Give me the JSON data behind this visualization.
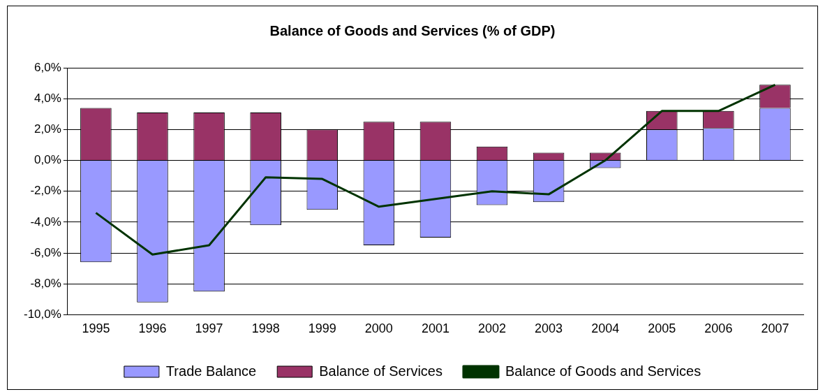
{
  "chart_data": {
    "type": "bar",
    "title": "Balance of Goods and Services (% of GDP)",
    "categories": [
      "1995",
      "1996",
      "1997",
      "1998",
      "1999",
      "2000",
      "2001",
      "2002",
      "2003",
      "2004",
      "2005",
      "2006",
      "2007"
    ],
    "stacked": true,
    "series": [
      {
        "name": "Trade Balance",
        "color": "#9999ff",
        "values": [
          -6.6,
          -9.2,
          -8.5,
          -4.2,
          -3.2,
          -5.5,
          -5.0,
          -2.9,
          -2.7,
          -0.5,
          2.0,
          2.1,
          3.4
        ]
      },
      {
        "name": "Balance of Services",
        "color": "#993366",
        "values": [
          3.4,
          3.1,
          3.1,
          3.1,
          2.0,
          2.5,
          2.5,
          0.9,
          0.5,
          0.5,
          1.2,
          1.1,
          1.5
        ]
      },
      {
        "name": "Balance of Goods and Services",
        "type": "line",
        "color": "#003300",
        "values": [
          -3.4,
          -6.1,
          -5.5,
          -1.1,
          -1.2,
          -3.0,
          -2.5,
          -2.0,
          -2.2,
          0.0,
          3.2,
          3.2,
          4.9
        ]
      }
    ],
    "ylim": [
      -10,
      6
    ],
    "yticks": [
      {
        "value": -10,
        "label": "-10,0%"
      },
      {
        "value": -8,
        "label": "-8,0%"
      },
      {
        "value": -6,
        "label": "-6,0%"
      },
      {
        "value": -4,
        "label": "-4,0%"
      },
      {
        "value": -2,
        "label": "-2,0%"
      },
      {
        "value": 0,
        "label": "0,0%"
      },
      {
        "value": 2,
        "label": "2,0%"
      },
      {
        "value": 4,
        "label": "4,0%"
      },
      {
        "value": 6,
        "label": "6,0%"
      }
    ],
    "grid": "y",
    "legend": "bottom",
    "marker": "none"
  }
}
